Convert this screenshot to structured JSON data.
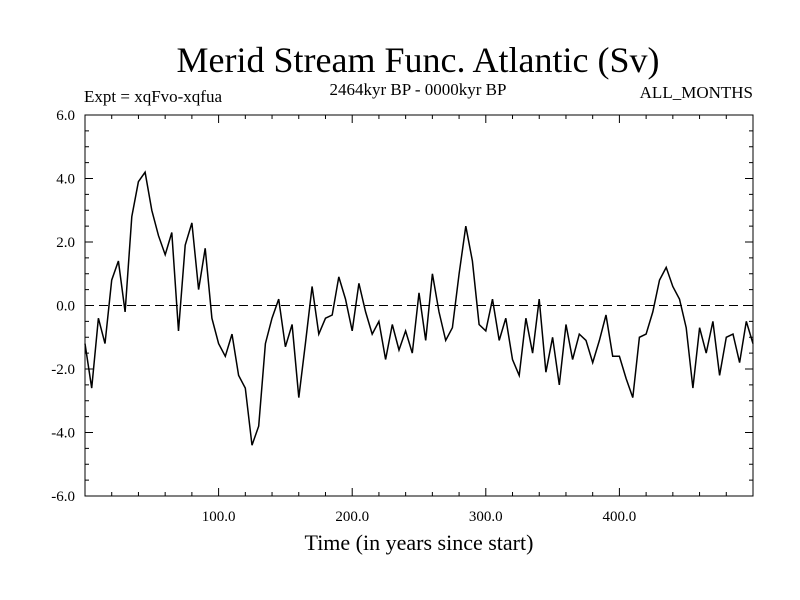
{
  "chart_data": {
    "type": "line",
    "title": "Merid Stream Func. Atlantic (Sv)",
    "subtitle_left": "Expt = xqFvo-xqfua",
    "subtitle_center": "2464kyr BP - 0000kyr BP",
    "subtitle_right": "ALL_MONTHS",
    "xlabel": "Time (in years since start)",
    "ylabel": "",
    "xlim": [
      0,
      500
    ],
    "ylim": [
      -6,
      6
    ],
    "x_ticks": [
      100,
      200,
      300,
      400
    ],
    "x_tick_labels": [
      "100.0",
      "200.0",
      "300.0",
      "400.0"
    ],
    "y_ticks": [
      -6,
      -4,
      -2,
      0,
      2,
      4,
      6
    ],
    "y_tick_labels": [
      "-6.0",
      "-4.0",
      "-2.0",
      "0.0",
      "2.0",
      "4.0",
      "6.0"
    ],
    "reference_line": {
      "y": 0,
      "style": "dashed"
    },
    "series": [
      {
        "name": "Merid Stream Func. Atlantic",
        "x": [
          0,
          5,
          10,
          15,
          20,
          25,
          30,
          35,
          40,
          45,
          50,
          55,
          60,
          65,
          70,
          75,
          80,
          85,
          90,
          95,
          100,
          105,
          110,
          115,
          120,
          125,
          130,
          135,
          140,
          145,
          150,
          155,
          160,
          165,
          170,
          175,
          180,
          185,
          190,
          195,
          200,
          205,
          210,
          215,
          220,
          225,
          230,
          235,
          240,
          245,
          250,
          255,
          260,
          265,
          270,
          275,
          280,
          285,
          290,
          295,
          300,
          305,
          310,
          315,
          320,
          325,
          330,
          335,
          340,
          345,
          350,
          355,
          360,
          365,
          370,
          375,
          380,
          385,
          390,
          395,
          400,
          405,
          410,
          415,
          420,
          425,
          430,
          435,
          440,
          445,
          450,
          455,
          460,
          465,
          470,
          475,
          480,
          485,
          490,
          495,
          500
        ],
        "values": [
          -1.2,
          -2.6,
          -0.4,
          -1.2,
          0.8,
          1.4,
          -0.2,
          2.8,
          3.9,
          4.2,
          3.0,
          2.2,
          1.6,
          2.3,
          -0.8,
          1.9,
          2.6,
          0.5,
          1.8,
          -0.4,
          -1.2,
          -1.6,
          -0.9,
          -2.2,
          -2.6,
          -4.4,
          -3.8,
          -1.2,
          -0.4,
          0.2,
          -1.3,
          -0.6,
          -2.9,
          -1.2,
          0.6,
          -0.9,
          -0.4,
          -0.3,
          0.9,
          0.2,
          -0.8,
          0.7,
          -0.2,
          -0.9,
          -0.5,
          -1.7,
          -0.6,
          -1.4,
          -0.8,
          -1.5,
          0.4,
          -1.1,
          1.0,
          -0.2,
          -1.1,
          -0.7,
          1.0,
          2.5,
          1.4,
          -0.6,
          -0.8,
          0.2,
          -1.1,
          -0.4,
          -1.7,
          -2.2,
          -0.4,
          -1.5,
          0.2,
          -2.1,
          -1.0,
          -2.5,
          -0.6,
          -1.7,
          -0.9,
          -1.1,
          -1.8,
          -1.1,
          -0.3,
          -1.6,
          -1.6,
          -2.3,
          -2.9,
          -1.0,
          -0.9,
          -0.2,
          0.8,
          1.2,
          0.6,
          0.2,
          -0.7,
          -2.6,
          -0.7,
          -1.5,
          -0.5,
          -2.2,
          -1.0,
          -0.9,
          -1.8,
          -0.5,
          -1.2
        ]
      }
    ]
  }
}
